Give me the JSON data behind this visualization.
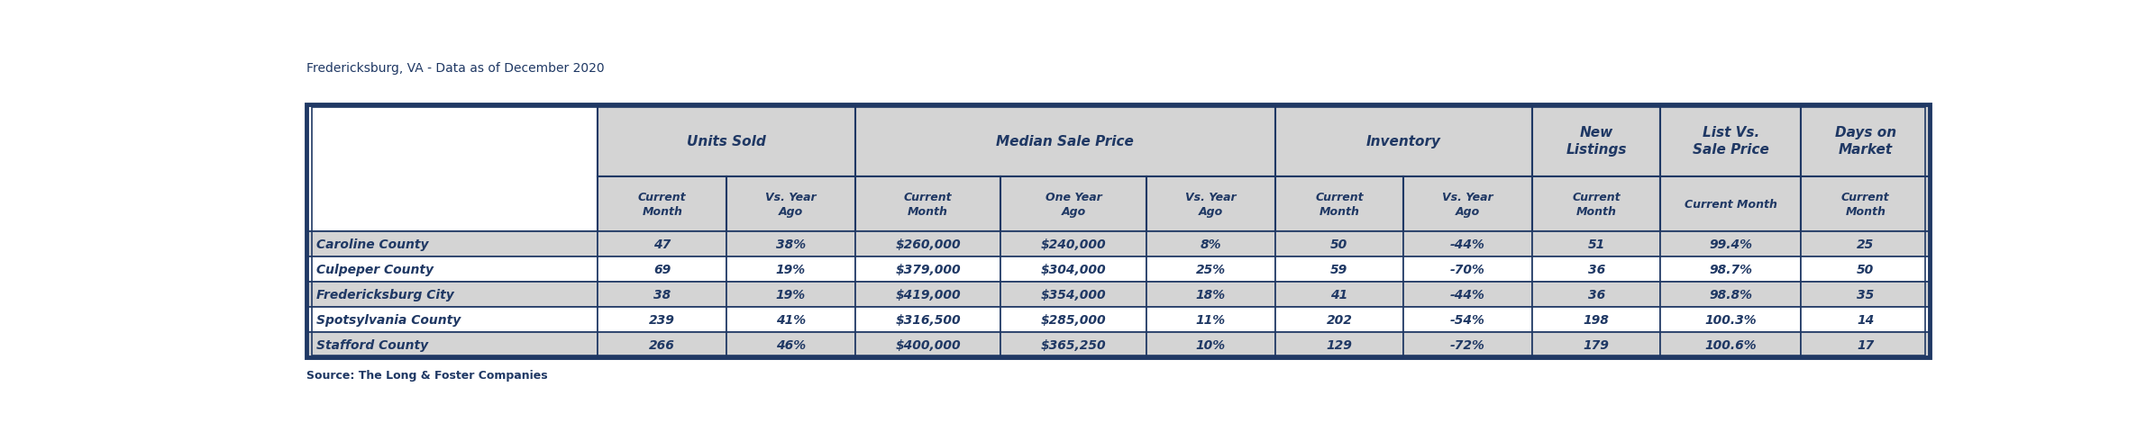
{
  "title": "Fredericksburg, VA - Data as of December 2020",
  "source": "Source: The Long & Foster Companies",
  "group_spans": [
    [
      1,
      2,
      "Units Sold"
    ],
    [
      3,
      5,
      "Median Sale Price"
    ],
    [
      6,
      7,
      "Inventory"
    ],
    [
      8,
      8,
      "New\nListings"
    ],
    [
      9,
      9,
      "List Vs.\nSale Price"
    ],
    [
      10,
      10,
      "Days on\nMarket"
    ]
  ],
  "subheaders": [
    "Current\nMonth",
    "Vs. Year\nAgo",
    "Current\nMonth",
    "One Year\nAgo",
    "Vs. Year\nAgo",
    "Current\nMonth",
    "Vs. Year\nAgo",
    "Current\nMonth",
    "Current Month",
    "Current\nMonth"
  ],
  "rows": [
    [
      "Caroline County",
      "47",
      "38%",
      "$260,000",
      "$240,000",
      "8%",
      "50",
      "-44%",
      "51",
      "99.4%",
      "25"
    ],
    [
      "Culpeper County",
      "69",
      "19%",
      "$379,000",
      "$304,000",
      "25%",
      "59",
      "-70%",
      "36",
      "98.7%",
      "50"
    ],
    [
      "Fredericksburg City",
      "38",
      "19%",
      "$419,000",
      "$354,000",
      "18%",
      "41",
      "-44%",
      "36",
      "98.8%",
      "35"
    ],
    [
      "Spotsylvania County",
      "239",
      "41%",
      "$316,500",
      "$285,000",
      "11%",
      "202",
      "-54%",
      "198",
      "100.3%",
      "14"
    ],
    [
      "Stafford County",
      "266",
      "46%",
      "$400,000",
      "$365,250",
      "10%",
      "129",
      "-72%",
      "179",
      "100.6%",
      "17"
    ]
  ],
  "col_widths_rel": [
    1.7,
    0.75,
    0.75,
    0.85,
    0.85,
    0.75,
    0.75,
    0.75,
    0.75,
    0.82,
    0.75
  ],
  "header_bg": "#d4d4d4",
  "row_bg_odd": "#d4d4d4",
  "row_bg_even": "#ffffff",
  "text_color": "#1f3864",
  "border_color": "#1f3864",
  "title_color": "#1f3864",
  "source_color": "#1f3864",
  "header_font_size": 11,
  "subheader_font_size": 9,
  "data_font_size": 10,
  "title_font_size": 10,
  "source_font_size": 9
}
